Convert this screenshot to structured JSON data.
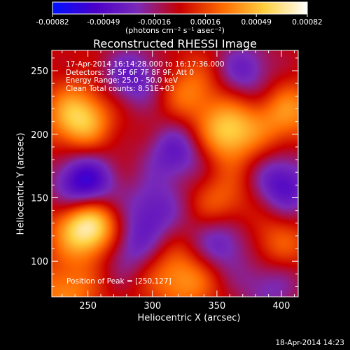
{
  "chart_data": {
    "type": "heatmap",
    "title": "Reconstructed RHESSI Image",
    "xlabel": "Heliocentric X (arcsec)",
    "ylabel": "Heliocentric Y (arcsec)",
    "xlim": [
      222,
      413
    ],
    "ylim": [
      72,
      266
    ],
    "x_ticks": [
      "250",
      "300",
      "350",
      "400"
    ],
    "x_tick_values": [
      250,
      300,
      350,
      400
    ],
    "y_ticks": [
      "100",
      "150",
      "200",
      "250"
    ],
    "y_tick_values": [
      100,
      150,
      200,
      250
    ],
    "colorbar": {
      "range": [
        -0.00082,
        0.00082
      ],
      "tick_labels": [
        "-0.00082",
        "-0.00049",
        "-0.00016",
        "0.00016",
        "0.00049",
        "0.00082"
      ],
      "units": "(photons cm⁻² s⁻¹ asec⁻²)",
      "colormap": [
        "#0010ff",
        "#4a00c8",
        "#7a2ab8",
        "#c80000",
        "#ff6a00",
        "#ffd040",
        "#ffffff"
      ]
    },
    "info_lines": [
      "17-Apr-2014 16:14:28.000 to 16:17:36.000",
      "Detectors: 3F 5F 6F 7F 8F 9F, Att 0",
      "Energy Range: 25.0 - 50.0 keV",
      "Clean     Total counts: 8.51E+03"
    ],
    "peak_label": "Position of Peak = [250,127]",
    "peak_position": [
      250,
      127
    ],
    "blobs": [
      {
        "x": 250,
        "y": 127,
        "amp": 1.0
      },
      {
        "x": 243,
        "y": 213,
        "amp": 0.72
      },
      {
        "x": 360,
        "y": 202,
        "amp": 0.7
      },
      {
        "x": 404,
        "y": 217,
        "amp": 0.45
      },
      {
        "x": 330,
        "y": 235,
        "amp": 0.38
      },
      {
        "x": 355,
        "y": 145,
        "amp": 0.35
      },
      {
        "x": 232,
        "y": 75,
        "amp": 0.42
      },
      {
        "x": 325,
        "y": 85,
        "amp": 0.45
      },
      {
        "x": 395,
        "y": 112,
        "amp": 0.35
      },
      {
        "x": 298,
        "y": 100,
        "amp": 0.25
      },
      {
        "x": 247,
        "y": 160,
        "amp": -0.82
      },
      {
        "x": 285,
        "y": 108,
        "amp": -0.55
      },
      {
        "x": 402,
        "y": 160,
        "amp": -0.6
      },
      {
        "x": 355,
        "y": 115,
        "amp": -0.5
      },
      {
        "x": 300,
        "y": 140,
        "amp": -0.45
      },
      {
        "x": 318,
        "y": 185,
        "amp": -0.5
      },
      {
        "x": 285,
        "y": 245,
        "amp": -0.5
      },
      {
        "x": 372,
        "y": 250,
        "amp": -0.45
      },
      {
        "x": 390,
        "y": 82,
        "amp": -0.4
      }
    ]
  },
  "footer_date": "18-Apr-2014 14:23"
}
